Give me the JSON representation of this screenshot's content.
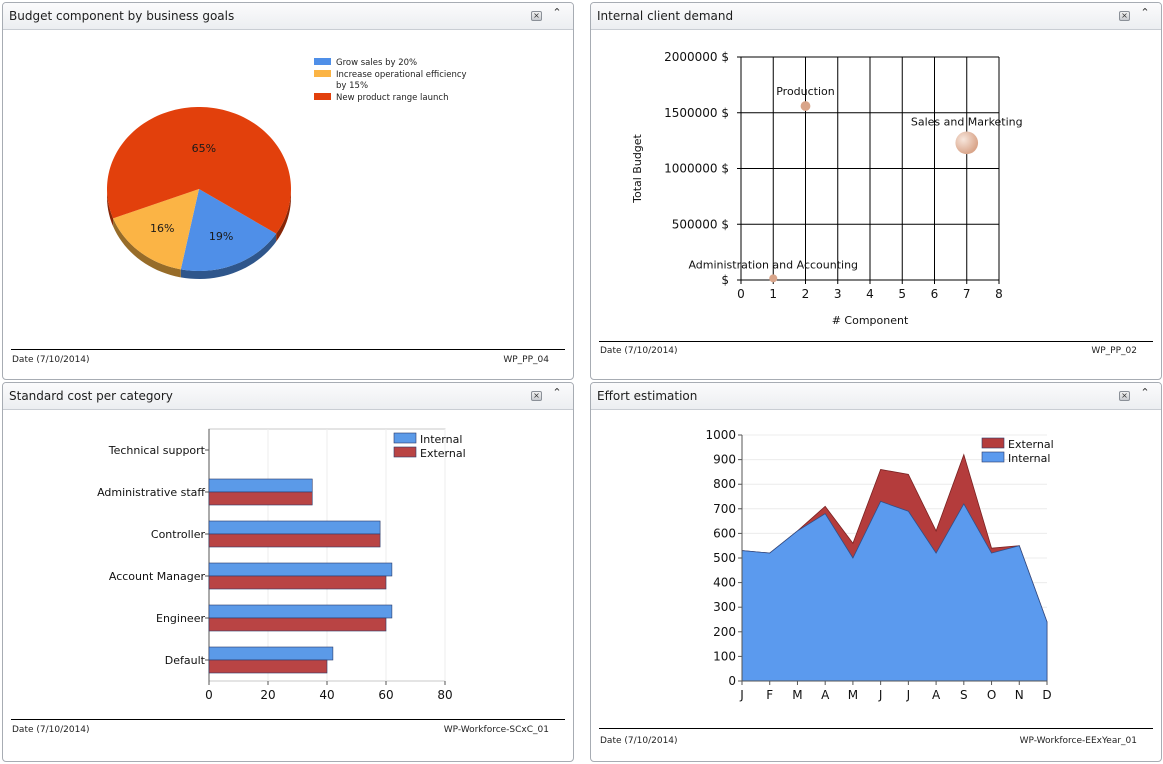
{
  "panels": {
    "budget": {
      "title": "Budget component by business goals",
      "close_icon": "close-icon",
      "collapse_icon": "chevron-up-icon",
      "close_glyph": "×",
      "collapse_glyph": "⌃",
      "footer_date": "Date (7/10/2014)",
      "footer_code": "WP_PP_04"
    },
    "demand": {
      "title": "Internal client demand",
      "close_glyph": "×",
      "collapse_glyph": "⌃",
      "footer_date": "Date (7/10/2014)",
      "footer_code": "WP_PP_02"
    },
    "cost": {
      "title": "Standard cost per category",
      "close_glyph": "×",
      "collapse_glyph": "⌃",
      "footer_date": "Date (7/10/2014)",
      "footer_code": "WP-Workforce-SCxC_01"
    },
    "effort": {
      "title": "Effort estimation",
      "close_glyph": "×",
      "collapse_glyph": "⌃",
      "footer_date": "Date (7/10/2014)",
      "footer_code": "WP-Workforce-EExYear_01"
    }
  },
  "colors": {
    "blue": "#4f8fe8",
    "orange": "#fbb445",
    "red": "#e2400c",
    "bar_blue": "#5b9ae8",
    "bar_red": "#b94444",
    "area_blue": "#5b9aee",
    "area_red": "#b43c3c",
    "bubble": "#d9a58a"
  },
  "chart_data": [
    {
      "id": "budget",
      "type": "pie",
      "title": "Budget component by business goals",
      "slices": [
        {
          "label": "Grow sales by 20%",
          "legend_lines": [
            "Grow sales by 20%"
          ],
          "value": 19,
          "value_label": "19%",
          "color": "#4f8fe8"
        },
        {
          "label": "Increase operational efficiency by 15%",
          "legend_lines": [
            "Increase operational efficiency",
            "by 15%"
          ],
          "value": 16,
          "value_label": "16%",
          "color": "#fbb445"
        },
        {
          "label": "New product range launch",
          "legend_lines": [
            "New product range launch"
          ],
          "value": 65,
          "value_label": "65%",
          "color": "#e2400c"
        }
      ],
      "legend_position": "top-right"
    },
    {
      "id": "demand",
      "type": "scatter",
      "title": "Internal client demand",
      "xlabel": "# Component",
      "ylabel": "Total Budget",
      "xlim": [
        0,
        8
      ],
      "ylim": [
        0,
        2000000
      ],
      "x_ticks": [
        "0",
        "1",
        "2",
        "3",
        "4",
        "5",
        "6",
        "7",
        "8"
      ],
      "y_ticks": [
        {
          "value": 0,
          "label": "$"
        },
        {
          "value": 500000,
          "label": "500000 $"
        },
        {
          "value": 1000000,
          "label": "1000000 $"
        },
        {
          "value": 1500000,
          "label": "1500000 $"
        },
        {
          "value": 2000000,
          "label": "2000000 $"
        }
      ],
      "points": [
        {
          "label": "Administration and Accounting",
          "x": 1,
          "y": 15000,
          "size": 1
        },
        {
          "label": "Production",
          "x": 2,
          "y": 1560000,
          "size": 1.5
        },
        {
          "label": "Sales and Marketing",
          "x": 7,
          "y": 1230000,
          "size": 8
        }
      ],
      "grid": true
    },
    {
      "id": "cost",
      "type": "bar",
      "orientation": "horizontal",
      "title": "Standard cost per category",
      "categories": [
        "Technical support",
        "Administrative staff",
        "Controller",
        "Account Manager",
        "Engineer",
        "Default"
      ],
      "series": [
        {
          "name": "Internal",
          "values": [
            0,
            35,
            58,
            62,
            62,
            42
          ],
          "color": "#5b9ae8"
        },
        {
          "name": "External",
          "values": [
            0,
            35,
            58,
            60,
            60,
            40
          ],
          "color": "#b94444"
        }
      ],
      "xlim": [
        0,
        80
      ],
      "x_ticks": [
        "0",
        "20",
        "40",
        "60",
        "80"
      ],
      "legend_position": "top-right"
    },
    {
      "id": "effort",
      "type": "area",
      "stacked": true,
      "title": "Effort estimation",
      "categories": [
        "J",
        "F",
        "M",
        "A",
        "M",
        "J",
        "J",
        "A",
        "S",
        "O",
        "N",
        "D"
      ],
      "series": [
        {
          "name": "Internal",
          "values": [
            530,
            520,
            610,
            680,
            500,
            730,
            690,
            520,
            720,
            520,
            550,
            240
          ],
          "color": "#5b9aee"
        },
        {
          "name": "External",
          "values": [
            0,
            0,
            0,
            30,
            60,
            130,
            150,
            90,
            200,
            20,
            0,
            0
          ],
          "color": "#b43c3c"
        }
      ],
      "legend_order": [
        "External",
        "Internal"
      ],
      "ylim": [
        0,
        1000
      ],
      "y_ticks": [
        "0",
        "100",
        "200",
        "300",
        "400",
        "500",
        "600",
        "700",
        "800",
        "900",
        "1000"
      ],
      "legend_position": "top-right"
    }
  ]
}
